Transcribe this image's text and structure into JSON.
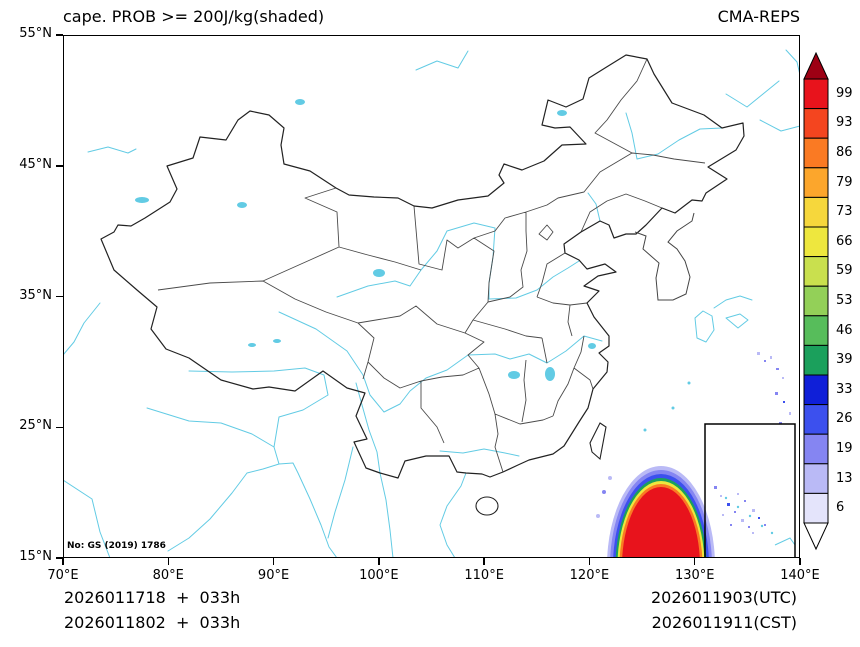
{
  "header": {
    "title": "cape. PROB >= 200J/kg(shaded)",
    "model": "CMA-REPS"
  },
  "map": {
    "note": "No: GS (2019) 1786",
    "lon_min": 70,
    "lon_max": 140,
    "lat_min": 15,
    "lat_max": 55,
    "x_ticks": [
      {
        "label": "70°E",
        "value": 70
      },
      {
        "label": "80°E",
        "value": 80
      },
      {
        "label": "90°E",
        "value": 90
      },
      {
        "label": "100°E",
        "value": 100
      },
      {
        "label": "110°E",
        "value": 110
      },
      {
        "label": "120°E",
        "value": 120
      },
      {
        "label": "130°E",
        "value": 130
      },
      {
        "label": "140°E",
        "value": 140
      }
    ],
    "y_ticks": [
      {
        "label": "15°N",
        "value": 15
      },
      {
        "label": "25°N",
        "value": 25
      },
      {
        "label": "35°N",
        "value": 35
      },
      {
        "label": "45°N",
        "value": 45
      },
      {
        "label": "55°N",
        "value": 55
      }
    ]
  },
  "colorbar": {
    "labels": [
      "99",
      "93",
      "86",
      "79",
      "73",
      "66",
      "59",
      "53",
      "46",
      "39",
      "33",
      "26",
      "19",
      "13",
      "6"
    ],
    "colors": [
      "#e8131c",
      "#f4451f",
      "#fa7a23",
      "#fca62c",
      "#f6d73c",
      "#eee73e",
      "#c9e04e",
      "#93d058",
      "#57bd5b",
      "#1ba05c",
      "#0f1fd8",
      "#3c50ee",
      "#8585f2",
      "#babaf6",
      "#e4e4fb"
    ],
    "over_color": "#9d0014",
    "under_color": "#ffffff"
  },
  "footer": {
    "left_line1": "2026011718  +  033h",
    "left_line2": "2026011802  +  033h",
    "right_line1": "2026011903(UTC)",
    "right_line2": "2026011911(CST)"
  }
}
